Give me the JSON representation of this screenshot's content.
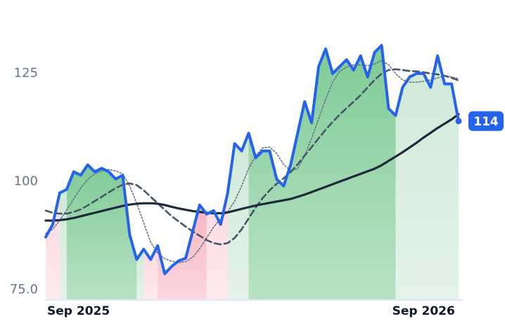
{
  "chart_data": {
    "type": "line",
    "categories": [
      "Sep 2025",
      null,
      null,
      null,
      null,
      null,
      null,
      null,
      null,
      null,
      null,
      null,
      null,
      null,
      null,
      null,
      null,
      null,
      null,
      null,
      null,
      null,
      null,
      null,
      null,
      null,
      null,
      null,
      null,
      null,
      null,
      null,
      null,
      null,
      null,
      null,
      null,
      null,
      null,
      null,
      null,
      null,
      null,
      null,
      null,
      null,
      null,
      null,
      null,
      null,
      null,
      null,
      null,
      null,
      "Sep 2026",
      null,
      null,
      null,
      null,
      null
    ],
    "ylim": [
      72.8,
      142
    ],
    "yticks": [
      {
        "value": 75,
        "label": "75.0"
      },
      100,
      125
    ],
    "series": [
      {
        "style": "dotted",
        "color": "#64748b",
        "values": [
          88,
          89,
          91,
          93.5,
          96,
          98.5,
          100.5,
          101.8,
          102.5,
          102.8,
          102.5,
          101.8,
          99.0,
          95.0,
          90.5,
          86.0,
          83.5,
          82.2,
          81.6,
          81.3,
          81.5,
          82.5,
          84.5,
          87.0,
          89.5,
          91.5,
          93.0,
          95.5,
          99.0,
          103.0,
          106.0,
          107.8,
          108.0,
          106.5,
          104.0,
          102.5,
          103.0,
          106.0,
          110.0,
          114.5,
          119.0,
          123.0,
          125.5,
          126.5,
          127.0,
          127.0,
          126.8,
          127.2,
          128.0,
          127.0,
          125.0,
          123.5,
          123.0,
          123.0,
          123.2,
          123.5,
          124.0,
          124.5,
          124.2,
          123.8
        ]
      },
      {
        "style": "dashed",
        "color": "#475569",
        "values": [
          93.3,
          92.8,
          92.6,
          92.6,
          93.0,
          93.6,
          94.5,
          95.5,
          96.5,
          97.5,
          98.5,
          99.3,
          99.6,
          99.2,
          98.0,
          96.5,
          95.0,
          93.5,
          92.0,
          90.8,
          89.6,
          88.5,
          87.5,
          86.5,
          85.8,
          85.5,
          85.8,
          87.0,
          89.0,
          91.5,
          94.0,
          96.2,
          98.0,
          99.5,
          100.8,
          102.2,
          104.0,
          106.0,
          108.0,
          110.0,
          112.0,
          113.8,
          115.5,
          117.0,
          118.5,
          120.0,
          121.8,
          123.5,
          125.0,
          125.8,
          126.0,
          125.8,
          125.6,
          125.5,
          125.3,
          125.0,
          124.8,
          124.5,
          124.0,
          123.4
        ]
      },
      {
        "style": "solid",
        "color": "#1e293b",
        "values": [
          91.0,
          91.0,
          91.1,
          91.3,
          91.6,
          92.0,
          92.4,
          92.8,
          93.2,
          93.6,
          94.0,
          94.4,
          94.7,
          94.9,
          95.0,
          95.0,
          94.9,
          94.6,
          94.2,
          93.8,
          93.5,
          93.2,
          93.0,
          92.8,
          92.7,
          92.7,
          92.9,
          93.3,
          93.7,
          94.1,
          94.5,
          94.8,
          95.1,
          95.4,
          95.7,
          96.0,
          96.5,
          97.0,
          97.6,
          98.2,
          98.8,
          99.4,
          100.0,
          100.6,
          101.2,
          101.8,
          102.4,
          103.0,
          103.8,
          104.8,
          105.8,
          106.8,
          107.9,
          109.0,
          110.2,
          111.3,
          112.4,
          113.4,
          114.4,
          115.6
        ]
      },
      {
        "style": "price",
        "color": "#2563eb",
        "values": [
          87.2,
          90.1,
          97.4,
          98.2,
          102.3,
          101.5,
          103.9,
          102.3,
          103.1,
          102.3,
          100.6,
          101.5,
          87.7,
          82.0,
          84.4,
          82.0,
          85.2,
          78.7,
          80.4,
          81.7,
          82.3,
          88.5,
          94.6,
          92.5,
          93.3,
          90.1,
          97.4,
          108.8,
          107.1,
          111.2,
          105.5,
          107.1,
          107.1,
          100.6,
          99.0,
          103.9,
          111.2,
          118.5,
          113.6,
          126.6,
          130.7,
          125.0,
          126.6,
          128.2,
          125.8,
          129.1,
          124.2,
          129.9,
          131.5,
          116.9,
          115.3,
          121.8,
          124.2,
          125.0,
          125.0,
          121.8,
          129.1,
          122.6,
          122.6,
          114
        ],
        "value_labels": [
          null,
          null,
          null,
          null,
          null,
          null,
          null,
          null,
          null,
          null,
          null,
          null,
          null,
          null,
          null,
          null,
          null,
          null,
          null,
          null,
          null,
          null,
          null,
          null,
          null,
          null,
          null,
          null,
          null,
          null,
          null,
          null,
          null,
          null,
          null,
          null,
          null,
          null,
          null,
          null,
          null,
          null,
          null,
          null,
          null,
          null,
          null,
          null,
          null,
          null,
          null,
          null,
          null,
          null,
          null,
          null,
          null,
          null,
          null,
          "114"
        ]
      }
    ],
    "bands": [
      {
        "from": 0,
        "to": 2,
        "color": "#fcd9e0"
      },
      {
        "from": 2,
        "to": 3,
        "color": "#cfe9d7"
      },
      {
        "from": 3,
        "to": 13,
        "color": "#7fcb96"
      },
      {
        "from": 13,
        "to": 14,
        "color": "#cfe9d7"
      },
      {
        "from": 14,
        "to": 16,
        "color": "#fcd9e0"
      },
      {
        "from": 16,
        "to": 23,
        "color": "#f7b6c3"
      },
      {
        "from": 23,
        "to": 26,
        "color": "#fcd9e0"
      },
      {
        "from": 26,
        "to": 29,
        "color": "#cfe9d7"
      },
      {
        "from": 29,
        "to": 50,
        "color": "#7fcb96"
      },
      {
        "from": 50,
        "to": 59,
        "color": "#cfe9d7"
      }
    ]
  }
}
